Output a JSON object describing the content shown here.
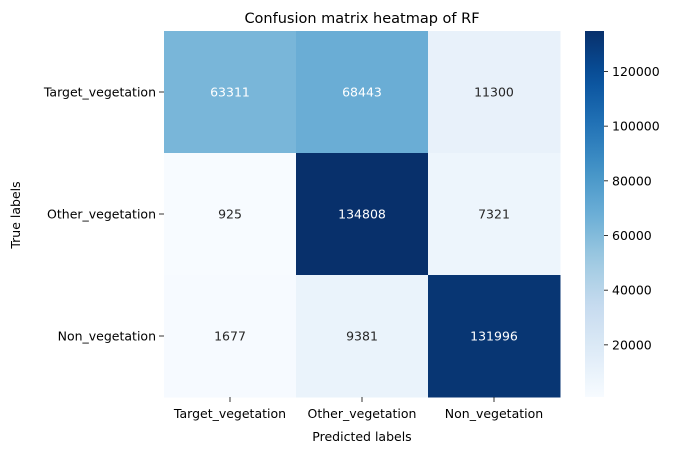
{
  "chart_data": {
    "type": "heatmap",
    "title": "Confusion matrix heatmap of RF",
    "xlabel": "Predicted labels",
    "ylabel": "True labels",
    "x_categories": [
      "Target_vegetation",
      "Other_vegetation",
      "Non_vegetation"
    ],
    "y_categories": [
      "Target_vegetation",
      "Other_vegetation",
      "Non_vegetation"
    ],
    "values": [
      [
        63311,
        68443,
        11300
      ],
      [
        925,
        134808,
        7321
      ],
      [
        1677,
        9381,
        131996
      ]
    ],
    "colorbar": {
      "colormap": "Blues",
      "min": 925,
      "max": 134808,
      "ticks": [
        20000,
        40000,
        60000,
        80000,
        100000,
        120000
      ]
    }
  }
}
